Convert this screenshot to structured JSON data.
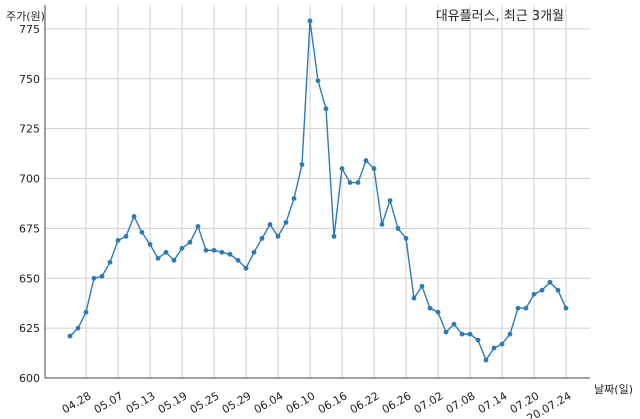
{
  "chart_data": {
    "type": "line",
    "title": "대유플러스, 최근 3개월",
    "ylabel": "주가(원)",
    "xlabel": "날짜(일)",
    "ylim": [
      600,
      787
    ],
    "yticks": [
      600,
      625,
      650,
      675,
      700,
      725,
      750,
      775
    ],
    "grid": true,
    "line_color": "#2e7bb4",
    "xticks": [
      {
        "label": "04.28",
        "index": 2
      },
      {
        "label": "05.07",
        "index": 6
      },
      {
        "label": "05.13",
        "index": 10
      },
      {
        "label": "05.19",
        "index": 14
      },
      {
        "label": "05.25",
        "index": 18
      },
      {
        "label": "05.29",
        "index": 22
      },
      {
        "label": "06.04",
        "index": 26
      },
      {
        "label": "06.10",
        "index": 30
      },
      {
        "label": "06.16",
        "index": 34
      },
      {
        "label": "06.22",
        "index": 38
      },
      {
        "label": "06.26",
        "index": 42
      },
      {
        "label": "07.02",
        "index": 46
      },
      {
        "label": "07.08",
        "index": 50
      },
      {
        "label": "07.14",
        "index": 54
      },
      {
        "label": "07.20",
        "index": 58
      },
      {
        "label": "20.07.24",
        "index": 62
      }
    ],
    "series": [
      {
        "values": [
          621,
          625,
          633,
          650,
          651,
          658,
          669,
          671,
          681,
          673,
          667,
          660,
          663,
          659,
          665,
          668,
          676,
          664,
          664,
          663,
          662,
          659,
          655,
          663,
          670,
          677,
          671,
          678,
          690,
          707,
          779,
          749,
          735,
          671,
          705,
          698,
          698,
          709,
          705,
          677,
          689,
          675,
          670,
          640,
          646,
          635,
          633,
          623,
          627,
          622,
          622,
          619,
          609,
          615,
          617,
          622,
          635,
          635,
          642,
          644,
          648,
          644,
          635
        ]
      }
    ]
  }
}
